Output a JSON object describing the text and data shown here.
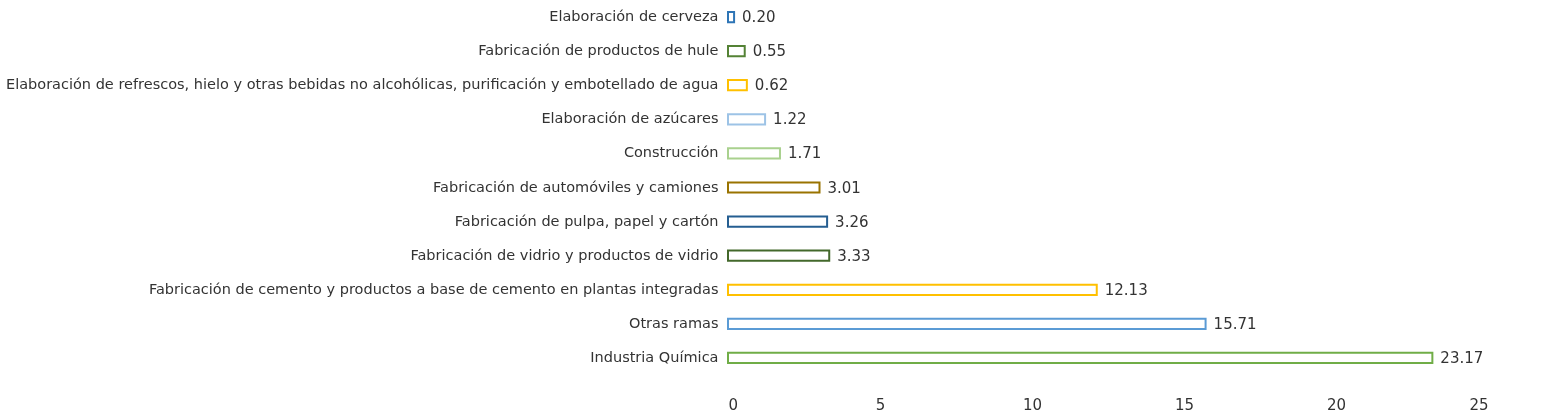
{
  "chart_data": {
    "type": "bar",
    "orientation": "horizontal",
    "categories": [
      "Elaboración de cerveza",
      "Fabricación de productos de hule",
      "Elaboración de refrescos, hielo y otras bebidas no alcohólicas, purificación y embotellado de agua",
      "Elaboración de azúcares",
      "Construcción",
      "Fabricación de automóviles y camiones",
      "Fabricación de pulpa, papel y cartón",
      "Fabricación de vidrio y productos de vidrio",
      "Fabricación de cemento y productos a base de cemento en plantas integradas",
      "Otras ramas",
      "Industria Química"
    ],
    "values": [
      0.2,
      0.55,
      0.62,
      1.22,
      1.71,
      3.01,
      3.26,
      3.33,
      12.13,
      15.71,
      23.17
    ],
    "colors": [
      "#2e75b6",
      "#548235",
      "#ffc000",
      "#9dc3e6",
      "#a9d18e",
      "#997300",
      "#255e91",
      "#43682b",
      "#ffc000",
      "#5b9bd5",
      "#70ad47"
    ],
    "value_labels": [
      "0.20",
      "0.55",
      "0.62",
      "1.22",
      "1.71",
      "3.01",
      "3.26",
      "3.33",
      "12.13",
      "15.71",
      "23.17"
    ],
    "xlim": [
      0,
      25
    ],
    "xticks": [
      0,
      5,
      10,
      15,
      20,
      25
    ],
    "grid": false,
    "legend": false
  }
}
